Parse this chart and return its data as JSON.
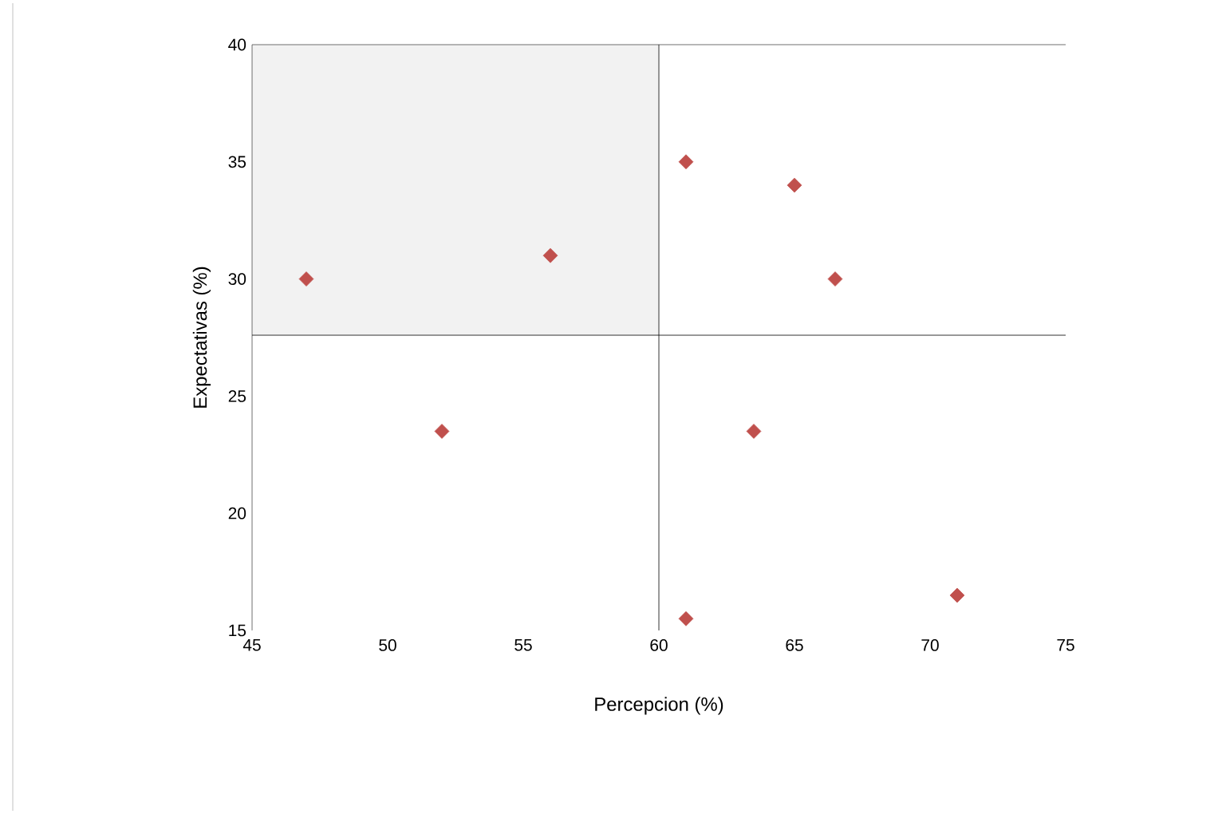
{
  "chart_data": {
    "type": "scatter",
    "xlabel": "Percepcion (%)",
    "ylabel": "Expectativas (%)",
    "x": [
      47,
      52,
      56,
      61,
      65,
      66.5,
      63.5,
      61,
      71
    ],
    "values": [
      30,
      23.5,
      31,
      35,
      34,
      30,
      23.5,
      15.5,
      16.5
    ],
    "color": "#c0504d",
    "marker": "diamond",
    "xlim": [
      45,
      75
    ],
    "xticks": [
      45,
      50,
      55,
      60,
      65,
      70,
      75
    ],
    "ylim": [
      15,
      40
    ],
    "yticks": [
      15,
      20,
      25,
      30,
      35,
      40
    ],
    "ref_lines": [
      {
        "axis": "x",
        "value": 60,
        "color": "#000000"
      },
      {
        "axis": "y",
        "value": 27.6,
        "color": "#000000"
      }
    ],
    "bands": [
      {
        "axis": "x",
        "from": 45,
        "to": 60,
        "color": "#f2f2f2"
      }
    ],
    "grid": false
  }
}
